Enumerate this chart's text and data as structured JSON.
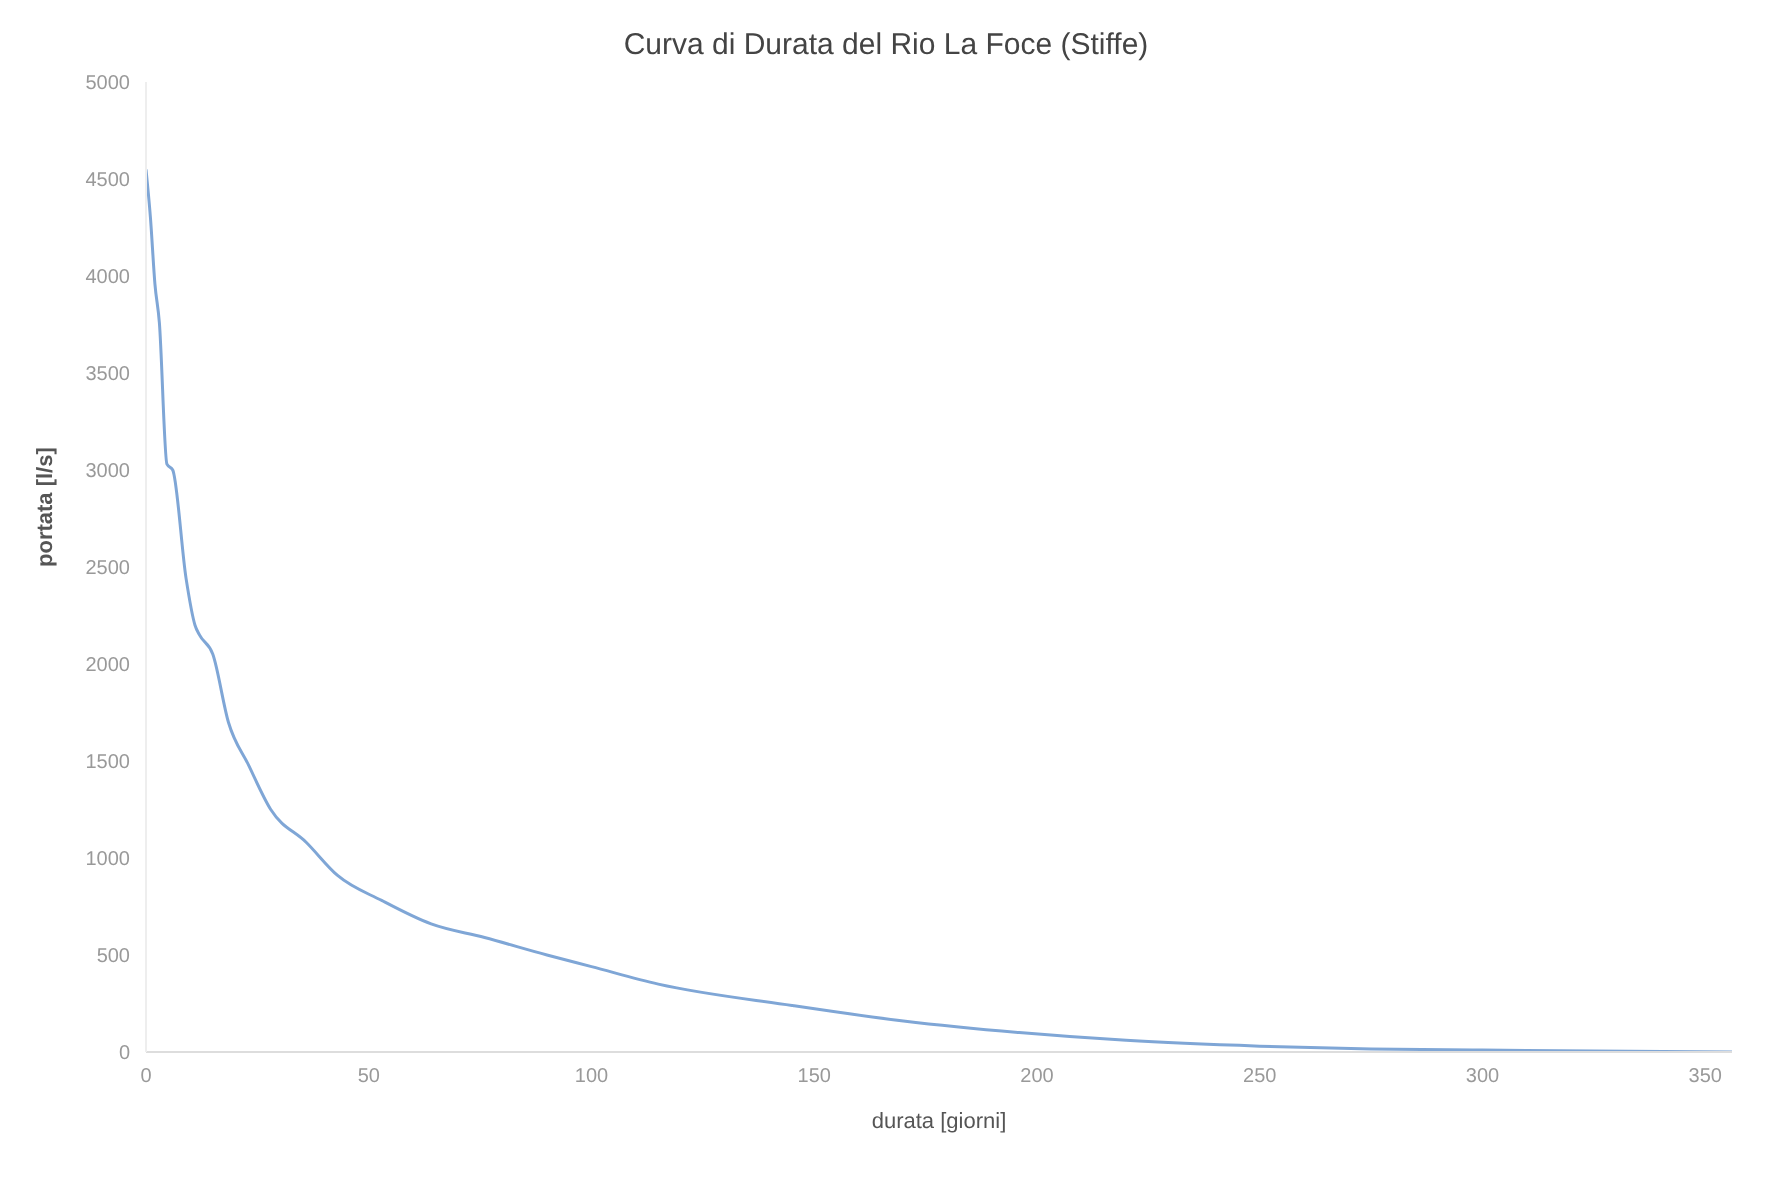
{
  "chart_data": {
    "type": "line",
    "title": "Curva di Durata del Rio La Foce (Stiffe)",
    "xlabel": "durata [giorni]",
    "ylabel": "portata [l/s]",
    "x": [
      0,
      1,
      2,
      3,
      4.7,
      6,
      9,
      11,
      12,
      15,
      18.5,
      23,
      28,
      36,
      43,
      53,
      64,
      76,
      90,
      100,
      115,
      145,
      170,
      196,
      220,
      250,
      275,
      300,
      325,
      356
    ],
    "series": [
      {
        "color": "#7fa6d6",
        "values": [
          4550,
          4300,
          3960,
          3760,
          3030,
          3000,
          2440,
          2200,
          2150,
          2050,
          1700,
          1480,
          1250,
          1080,
          910,
          780,
          660,
          590,
          500,
          440,
          350,
          240,
          160,
          100,
          60,
          30,
          15,
          10,
          5,
          0
        ]
      }
    ],
    "xlim": [
      0,
      356
    ],
    "xticks": [
      0,
      50,
      100,
      150,
      200,
      250,
      300,
      350
    ],
    "ylim": [
      0,
      5000
    ],
    "yticks": [
      0,
      500,
      1000,
      1500,
      2000,
      2500,
      3000,
      3500,
      4000,
      4500,
      5000
    ],
    "grid": false,
    "marker": "none",
    "line_style": "solid"
  }
}
